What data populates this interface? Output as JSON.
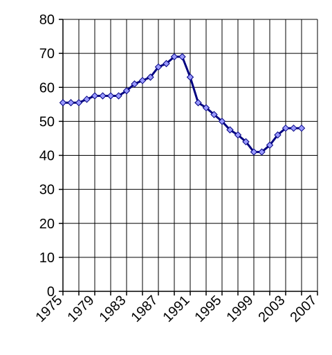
{
  "chart_data": {
    "type": "line",
    "title": "",
    "xlabel": "",
    "ylabel": "",
    "xlim": [
      1975,
      2007
    ],
    "ylim": [
      0,
      80
    ],
    "x_ticks": [
      1975,
      1979,
      1983,
      1987,
      1991,
      1995,
      1999,
      2003,
      2007
    ],
    "y_ticks": [
      0,
      10,
      20,
      30,
      40,
      50,
      60,
      70,
      80
    ],
    "grid": true,
    "legend": "none",
    "series": [
      {
        "color": "#000080",
        "marker_color": "#9999ff",
        "x": [
          1975,
          1976,
          1977,
          1978,
          1979,
          1980,
          1981,
          1982,
          1983,
          1984,
          1985,
          1986,
          1987,
          1988,
          1989,
          1990,
          1991,
          1992,
          1993,
          1994,
          1995,
          1996,
          1997,
          1998,
          1999,
          2000,
          2001,
          2002,
          2003,
          2004,
          2005
        ],
        "y": [
          55.5,
          55.5,
          55.5,
          56.5,
          57.5,
          57.5,
          57.5,
          57.5,
          59,
          61,
          62,
          63,
          66,
          67,
          69,
          69,
          63,
          55.5,
          54,
          52,
          50,
          47.5,
          46,
          44,
          41,
          41,
          43,
          46,
          48,
          48,
          48
        ]
      }
    ]
  }
}
